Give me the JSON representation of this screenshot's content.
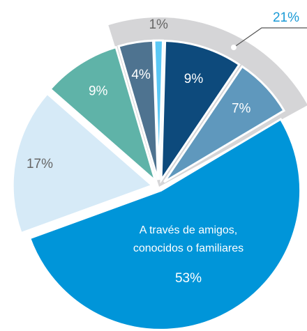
{
  "chart_data": {
    "type": "pie",
    "categories": [
      null,
      null,
      null,
      null,
      "A través de amigos, conocidos o familiares",
      null,
      null
    ],
    "values": [
      4,
      1,
      9,
      7,
      53,
      17,
      9
    ],
    "value_labels": [
      "4%",
      "1%",
      "9%",
      "7%",
      "53%",
      "17%",
      "9%"
    ],
    "colors": [
      "#4e7390",
      "#5bc8f5",
      "#0d4a7c",
      "#5f98bd",
      "#0095d9",
      "#d6eaf7",
      "#5fb3a8"
    ],
    "group": {
      "label": "21%",
      "value": 21,
      "color": "#d5d5d7"
    }
  }
}
